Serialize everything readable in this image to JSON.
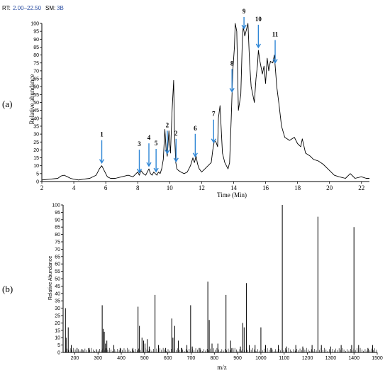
{
  "chart_data": [
    {
      "type": "line",
      "panel_label": "(a)",
      "header": {
        "rt_label": "RT:",
        "rt_range": "2.00–22.50",
        "sm_label": "SM:",
        "sm_value": "3B"
      },
      "xlabel": "Time (Min)",
      "ylabel": "Relative abundance",
      "xlim": [
        2,
        22.5
      ],
      "ylim": [
        0,
        100
      ],
      "xticks": [
        2,
        4,
        6,
        8,
        10,
        12,
        14,
        16,
        18,
        20,
        22
      ],
      "yticks": [
        0,
        5,
        10,
        15,
        20,
        25,
        30,
        35,
        40,
        45,
        50,
        55,
        60,
        65,
        70,
        75,
        80,
        85,
        90,
        95,
        100
      ],
      "color": "#000000",
      "arrow_color": "#2e86d6",
      "series": [
        {
          "x": [
            2.0,
            2.5,
            3.0,
            3.2,
            3.4,
            3.6,
            3.8,
            4.0,
            4.3,
            4.6,
            5.0,
            5.4,
            5.6,
            5.75,
            5.9,
            6.1,
            6.3,
            6.6,
            7.0,
            7.4,
            7.7,
            7.9,
            8.0,
            8.1,
            8.2,
            8.35,
            8.5,
            8.6,
            8.7,
            8.8,
            8.9,
            9.0,
            9.1,
            9.2,
            9.3,
            9.4,
            9.5,
            9.6,
            9.7,
            9.78,
            9.85,
            9.95,
            10.05,
            10.15,
            10.25,
            10.3,
            10.38,
            10.45,
            10.55,
            10.7,
            10.9,
            11.1,
            11.3,
            11.45,
            11.55,
            11.65,
            11.75,
            11.85,
            12.0,
            12.2,
            12.4,
            12.6,
            12.7,
            12.8,
            12.9,
            13.0,
            13.05,
            13.15,
            13.3,
            13.45,
            13.55,
            13.65,
            13.75,
            13.85,
            13.95,
            14.05,
            14.1,
            14.2,
            14.3,
            14.45,
            14.55,
            14.6,
            14.7,
            14.8,
            14.9,
            15.0,
            15.1,
            15.2,
            15.3,
            15.4,
            15.5,
            15.55,
            15.65,
            15.8,
            15.9,
            16.0,
            16.1,
            16.2,
            16.3,
            16.45,
            16.55,
            16.7,
            16.85,
            17.0,
            17.2,
            17.5,
            17.8,
            18.0,
            18.2,
            18.3,
            18.5,
            18.8,
            19.0,
            19.3,
            19.6,
            20.0,
            20.3,
            20.6,
            21.0,
            21.3,
            21.6,
            22.0,
            22.3,
            22.5
          ],
          "y": [
            1,
            1.5,
            2,
            3.5,
            4,
            3,
            2,
            1.5,
            1,
            1.5,
            2,
            4,
            8,
            10,
            7,
            3,
            2,
            2,
            3,
            4,
            3,
            5,
            6,
            4,
            7,
            5,
            4,
            6,
            8,
            5,
            4,
            6,
            5,
            4,
            6,
            5,
            8,
            14,
            33,
            20,
            16,
            32,
            18,
            45,
            64,
            30,
            12,
            8,
            7,
            6,
            5,
            6,
            10,
            15,
            12,
            16,
            11,
            8,
            6,
            8,
            10,
            12,
            20,
            26,
            25,
            22,
            40,
            48,
            18,
            12,
            10,
            8,
            12,
            40,
            70,
            85,
            100,
            95,
            45,
            55,
            90,
            98,
            92,
            96,
            100,
            75,
            60,
            55,
            50,
            65,
            74,
            83,
            76,
            68,
            73,
            62,
            78,
            70,
            76,
            75,
            80,
            60,
            48,
            35,
            28,
            26,
            28,
            24,
            22,
            27,
            18,
            16,
            14,
            13,
            11,
            7,
            4,
            3,
            2,
            5,
            2,
            3,
            2,
            2
          ]
        }
      ],
      "annotations": [
        {
          "label": "1",
          "x": 5.75
        },
        {
          "label": "3",
          "x": 8.1
        },
        {
          "label": "4",
          "x": 8.7
        },
        {
          "label": "5",
          "x": 9.15
        },
        {
          "label": "2",
          "x": 9.85
        },
        {
          "label": "2",
          "x": 10.4
        },
        {
          "label": "6",
          "x": 11.6
        },
        {
          "label": "7",
          "x": 12.75
        },
        {
          "label": "8",
          "x": 13.9
        },
        {
          "label": "9",
          "x": 14.65
        },
        {
          "label": "10",
          "x": 15.55
        },
        {
          "label": "11",
          "x": 16.6
        }
      ]
    },
    {
      "type": "bar",
      "panel_label": "(b)",
      "xlabel": "m/z",
      "ylabel": "Relative Abundance",
      "xlim": [
        150,
        1500
      ],
      "ylim": [
        0,
        100
      ],
      "xticks": [
        200,
        300,
        400,
        500,
        600,
        700,
        800,
        900,
        1000,
        1100,
        1200,
        1300,
        1400,
        1500
      ],
      "yticks": [
        0,
        5,
        10,
        15,
        20,
        25,
        30,
        35,
        40,
        45,
        50,
        55,
        60,
        65,
        70,
        75,
        80,
        85,
        90,
        95,
        100
      ],
      "color": "#000000",
      "peaks": {
        "mz": [
          160,
          163,
          172,
          185,
          210,
          232,
          262,
          293,
          318,
          322,
          327,
          332,
          338,
          368,
          395,
          450,
          472,
          478,
          489,
          496,
          502,
          512,
          520,
          545,
          560,
          590,
          617,
          622,
          630,
          645,
          660,
          682,
          698,
          705,
          738,
          772,
          778,
          790,
          815,
          850,
          870,
          880,
          912,
          922,
          928,
          938,
          950,
          975,
          1000,
          1020,
          1045,
          1075,
          1092,
          1110,
          1150,
          1180,
          1220,
          1245,
          1260,
          1300,
          1345,
          1390,
          1400,
          1420,
          1460,
          1480
        ],
        "intensity": [
          30,
          10,
          17,
          5,
          3,
          2,
          3,
          2,
          32,
          16,
          14,
          6,
          8,
          5,
          3,
          3,
          31,
          18,
          10,
          8,
          6,
          9,
          4,
          39,
          5,
          3,
          23,
          10,
          18,
          8,
          3,
          5,
          32,
          4,
          3,
          48,
          22,
          6,
          6,
          39,
          8,
          3,
          4,
          20,
          17,
          47,
          5,
          5,
          17,
          5,
          3,
          5,
          100,
          4,
          5,
          4,
          5,
          92,
          5,
          4,
          5,
          5,
          85,
          5,
          3,
          5
        ]
      }
    }
  ]
}
